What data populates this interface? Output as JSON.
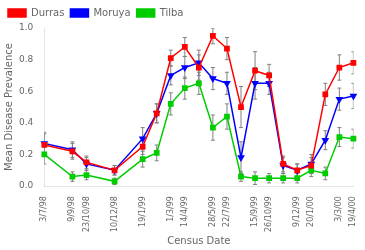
{
  "chart_data": {
    "type": "line",
    "xlabel": "Census Date",
    "ylabel": "Mean Disease Prevalence",
    "categories": [
      "3/7/98",
      null,
      "9/9/98",
      "23/10/98",
      null,
      "10/12/98",
      null,
      "19/1/99",
      null,
      "1/3/99",
      "14/4/99",
      null,
      "28/5/99",
      "22/7/99",
      null,
      "15/9/99",
      "26/10/99",
      null,
      "9/12/99",
      "20/1/00",
      null,
      "3/3/00",
      "19/4/00"
    ],
    "series": [
      {
        "name": "Durras",
        "color": "#ff0000",
        "marker": "square",
        "values": [
          0.26,
          null,
          0.22,
          0.15,
          null,
          0.1,
          null,
          0.25,
          0.46,
          0.81,
          0.88,
          0.75,
          0.95,
          0.87,
          0.5,
          0.73,
          0.7,
          0.14,
          0.1,
          0.13,
          0.58,
          0.75,
          0.78
        ],
        "errors": [
          0.07,
          null,
          0.05,
          0.04,
          null,
          0.03,
          null,
          0.05,
          0.06,
          0.05,
          0.06,
          0.08,
          0.05,
          0.07,
          0.13,
          0.12,
          0.07,
          0.05,
          0.04,
          0.05,
          0.07,
          0.08,
          0.07
        ]
      },
      {
        "name": "Moruya",
        "color": "#0000ff",
        "marker": "triangle_down",
        "values": [
          0.27,
          null,
          0.23,
          0.14,
          null,
          0.1,
          null,
          0.3,
          0.46,
          0.7,
          0.75,
          0.78,
          0.68,
          0.65,
          0.18,
          0.65,
          0.65,
          0.13,
          0.1,
          0.14,
          0.29,
          0.55,
          0.57
        ],
        "errors": [
          0.07,
          null,
          0.05,
          0.04,
          null,
          0.03,
          null,
          0.07,
          0.06,
          0.06,
          0.07,
          0.08,
          0.07,
          0.07,
          0.1,
          0.1,
          0.07,
          0.05,
          0.04,
          0.06,
          0.06,
          0.07,
          0.08
        ]
      },
      {
        "name": "Tilba",
        "color": "#00cc00",
        "marker": "square",
        "values": [
          0.2,
          null,
          0.06,
          0.07,
          null,
          0.03,
          null,
          0.17,
          0.21,
          0.52,
          0.62,
          0.65,
          0.37,
          0.44,
          0.06,
          0.05,
          0.05,
          0.05,
          0.05,
          0.1,
          0.08,
          0.31,
          0.3
        ],
        "errors": [
          0.06,
          null,
          0.03,
          0.03,
          null,
          0.02,
          null,
          0.05,
          0.05,
          0.07,
          0.07,
          0.07,
          0.08,
          0.08,
          0.03,
          0.04,
          0.03,
          0.03,
          0.03,
          0.04,
          0.04,
          0.06,
          0.06
        ]
      }
    ],
    "ylim": [
      0.0,
      1.0
    ],
    "yticks": [
      {
        "value": 0,
        "label": "0.0"
      },
      0.2,
      0.4,
      0.6,
      0.8,
      {
        "value": 1,
        "label": "1.0"
      }
    ],
    "legend": "upper left",
    "grid": false
  }
}
